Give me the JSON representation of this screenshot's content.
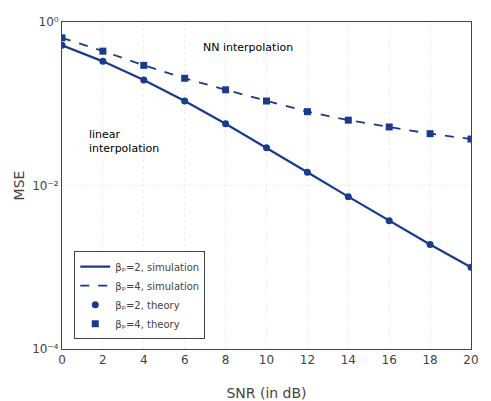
{
  "chart_data": {
    "type": "line",
    "xlabel": "SNR (in dB)",
    "ylabel": "MSE",
    "x": [
      0,
      2,
      4,
      6,
      8,
      10,
      12,
      14,
      16,
      18,
      20
    ],
    "series": [
      {
        "name": "βₚ=2, simulation",
        "color": "#1a3a8a",
        "type": "line",
        "line_style": "solid",
        "values": [
          0.52,
          0.33,
          0.195,
          0.108,
          0.057,
          0.029,
          0.0145,
          0.0073,
          0.0037,
          0.0019,
          0.001
        ]
      },
      {
        "name": "βₚ=4, simulation",
        "color": "#1a3a8a",
        "type": "line",
        "line_style": "dashed",
        "values": [
          0.64,
          0.44,
          0.295,
          0.205,
          0.148,
          0.108,
          0.08,
          0.063,
          0.052,
          0.043,
          0.037
        ]
      },
      {
        "name": "βₚ=2, theory",
        "color": "#1a3a8a",
        "type": "scatter",
        "marker": "circle",
        "values": [
          0.52,
          0.33,
          0.195,
          0.108,
          0.057,
          0.029,
          0.0145,
          0.0073,
          0.0037,
          0.0019,
          0.001
        ]
      },
      {
        "name": "βₚ=4, theory",
        "color": "#1a3a8a",
        "type": "scatter",
        "marker": "square",
        "values": [
          0.64,
          0.44,
          0.295,
          0.205,
          0.148,
          0.108,
          0.08,
          0.063,
          0.052,
          0.043,
          0.037
        ]
      }
    ],
    "xlim": [
      0,
      20
    ],
    "xticks": [
      0,
      2,
      4,
      6,
      8,
      10,
      12,
      14,
      16,
      18,
      20
    ],
    "ylim": [
      0.0001,
      1
    ],
    "yticks": [
      {
        "value": 1,
        "label": "10⁰"
      },
      {
        "value": 0.01,
        "label": "10⁻²"
      },
      {
        "value": 0.0001,
        "label": "10⁻⁴"
      }
    ],
    "log": "y",
    "grid": true,
    "legend": "lower left",
    "annotations": [
      {
        "text": "NN interpolation",
        "x": 6.8,
        "y": 0.38
      },
      {
        "text": "linear\ninterpolation",
        "x": 1.2,
        "y": 0.053
      }
    ]
  }
}
